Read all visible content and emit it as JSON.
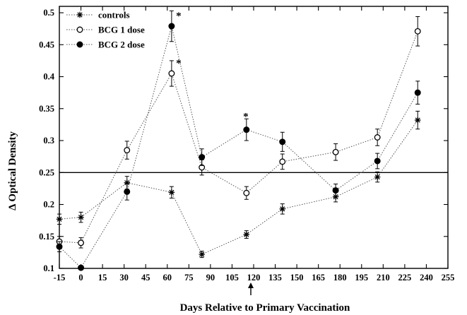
{
  "chart_data": {
    "type": "line",
    "xlabel": "Days Relative to Primary Vaccination",
    "ylabel": "Δ Optical Density",
    "xlim": [
      -15,
      255
    ],
    "ylim": [
      0.1,
      0.51
    ],
    "x_ticks": [
      -15,
      0,
      15,
      30,
      45,
      60,
      75,
      90,
      105,
      120,
      135,
      150,
      165,
      180,
      195,
      210,
      225,
      240,
      255
    ],
    "y_ticks": [
      0.1,
      0.15,
      0.2,
      0.25,
      0.3,
      0.35,
      0.4,
      0.45,
      0.5
    ],
    "y_tick_labels": [
      "0.1",
      "0.15",
      "0.2",
      "0.25",
      "0.3",
      "0.35",
      "0.4",
      "0.45",
      "0.5"
    ],
    "reference_line_y": 0.25,
    "grid": false,
    "legend_position": "top-left",
    "arrow_marker_x": 120,
    "series": [
      {
        "name": "controls",
        "marker": "asterisk",
        "x": [
          -15,
          0,
          32,
          63,
          84,
          115,
          140,
          177,
          206,
          234
        ],
        "y": [
          0.177,
          0.18,
          0.234,
          0.219,
          0.122,
          0.153,
          0.193,
          0.212,
          0.243,
          0.332
        ],
        "err": [
          0.008,
          0.008,
          0.01,
          0.009,
          0.005,
          0.006,
          0.008,
          0.008,
          0.008,
          0.014
        ]
      },
      {
        "name": "BCG 1 dose",
        "marker": "open-circle",
        "x": [
          -15,
          0,
          32,
          63,
          84,
          115,
          140,
          177,
          206,
          234
        ],
        "y": [
          0.142,
          0.14,
          0.285,
          0.405,
          0.258,
          0.218,
          0.267,
          0.282,
          0.305,
          0.471
        ],
        "err": [
          0.008,
          0.008,
          0.014,
          0.02,
          0.012,
          0.01,
          0.012,
          0.013,
          0.013,
          0.023
        ]
      },
      {
        "name": "BCG 2 dose",
        "marker": "filled-circle",
        "x": [
          -15,
          0,
          32,
          63,
          84,
          115,
          140,
          177,
          206,
          234
        ],
        "y": [
          0.134,
          0.101,
          0.22,
          0.479,
          0.274,
          0.317,
          0.298,
          0.222,
          0.268,
          0.375
        ],
        "err": [
          0.008,
          0.003,
          0.013,
          0.024,
          0.013,
          0.017,
          0.015,
          0.01,
          0.012,
          0.018
        ]
      }
    ],
    "annotations": [
      {
        "text": "*",
        "x": 63,
        "y": 0.479
      },
      {
        "text": "*",
        "x": 63,
        "y": 0.405
      },
      {
        "text": "*",
        "x": 115,
        "y": 0.317
      }
    ]
  }
}
